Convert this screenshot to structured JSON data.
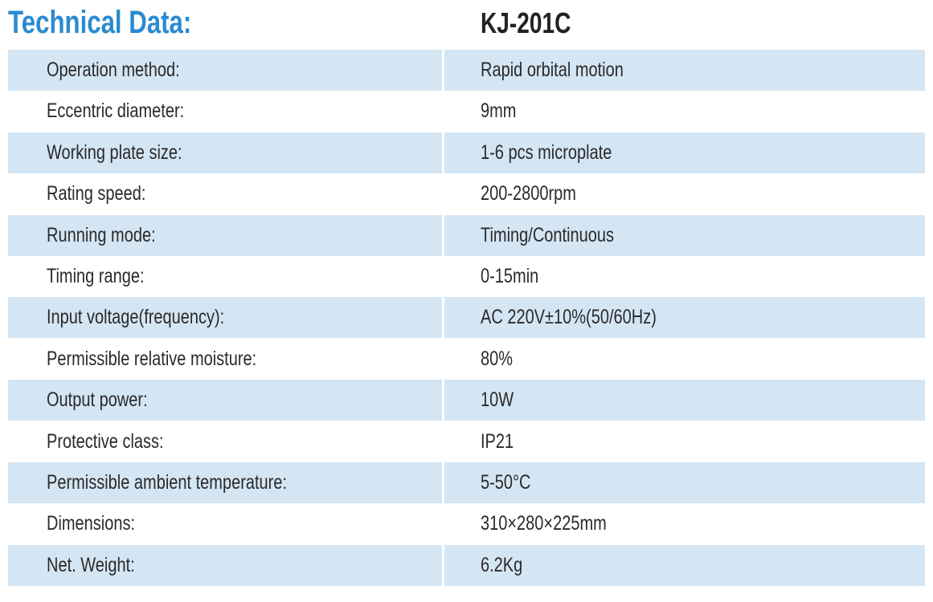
{
  "header": {
    "title": "Technical Data:",
    "model": "KJ-201C"
  },
  "table": {
    "rows": [
      [
        "Operation method:",
        "Rapid orbital motion"
      ],
      [
        "Eccentric diameter:",
        "9mm"
      ],
      [
        "Working plate size:",
        "1-6 pcs microplate"
      ],
      [
        "Rating speed:",
        "200-2800rpm"
      ],
      [
        "Running mode:",
        "Timing/Continuous"
      ],
      [
        "Timing range:",
        "0-15min"
      ],
      [
        "Input voltage(frequency):",
        "AC 220V±10%(50/60Hz)"
      ],
      [
        "Permissible relative moisture:",
        "80%"
      ],
      [
        "Output power:",
        "10W"
      ],
      [
        "Protective class:",
        "IP21"
      ],
      [
        "Permissible ambient temperature:",
        "5-50°C"
      ],
      [
        "Dimensions:",
        "310×280×225mm"
      ],
      [
        "Net. Weight:",
        "6.2Kg"
      ]
    ]
  }
}
